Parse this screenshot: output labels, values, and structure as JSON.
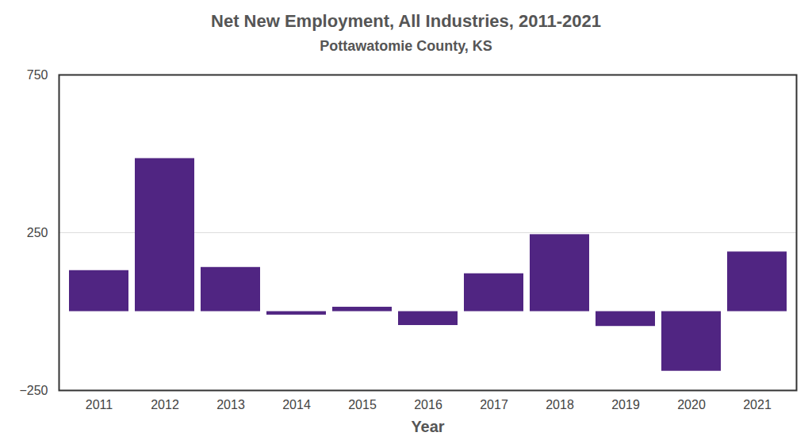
{
  "chart_data": {
    "type": "bar",
    "title": "Net New Employment, All Industries, 2011-2021",
    "subtitle": "Pottawatomie County, KS",
    "x_label": "Year",
    "categories": [
      "2011",
      "2012",
      "2013",
      "2014",
      "2015",
      "2016",
      "2017",
      "2018",
      "2019",
      "2020",
      "2021"
    ],
    "values": [
      130,
      485,
      140,
      -11,
      14,
      -44,
      120,
      244,
      -47,
      -189,
      189
    ],
    "color": "#502582",
    "ylim": [
      -250,
      750
    ],
    "yticks": [
      -250,
      250,
      750
    ],
    "grid": true
  }
}
